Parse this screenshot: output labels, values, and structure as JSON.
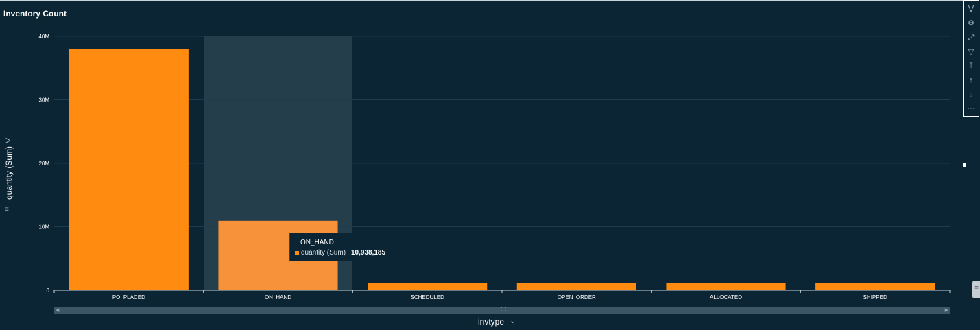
{
  "visual_title": "Inventory Count",
  "y_axis_label": "quantity (Sum)",
  "x_axis_label": "invtype",
  "chart_data": {
    "type": "bar",
    "title": "Inventory Count",
    "xlabel": "invtype",
    "ylabel": "quantity (Sum)",
    "categories": [
      "PO_PLACED",
      "ON_HAND",
      "SCHEDULED",
      "OPEN_ORDER",
      "ALLOCATED",
      "SHIPPED"
    ],
    "series": [
      {
        "name": "quantity (Sum)",
        "values": [
          38000000,
          10938185,
          1100000,
          1100000,
          1100000,
          1100000
        ]
      }
    ],
    "ylim": [
      0,
      40000000
    ],
    "yticks": [
      0,
      10000000,
      20000000,
      30000000,
      40000000
    ],
    "ytick_labels": [
      "0",
      "10M",
      "20M",
      "30M",
      "40M"
    ],
    "grid": true,
    "highlighted_category": "ON_HAND",
    "bar_color": "#ff8b10",
    "bar_highlight_color": "#f7913a"
  },
  "tooltip": {
    "title": "ON_HAND",
    "series_label": "quantity (Sum)",
    "value": "10,938,185"
  },
  "side_menu": {
    "icons": [
      "collapse-icon",
      "settings-icon",
      "expand-icon",
      "filter-icon",
      "drill-top-icon",
      "drill-up-icon",
      "drill-down-icon",
      "more-icon"
    ]
  },
  "colors": {
    "background": "#0b2534",
    "bar": "#ff8b10",
    "gridline": "#1f3c4c",
    "highlight_band": "#253e4b"
  }
}
